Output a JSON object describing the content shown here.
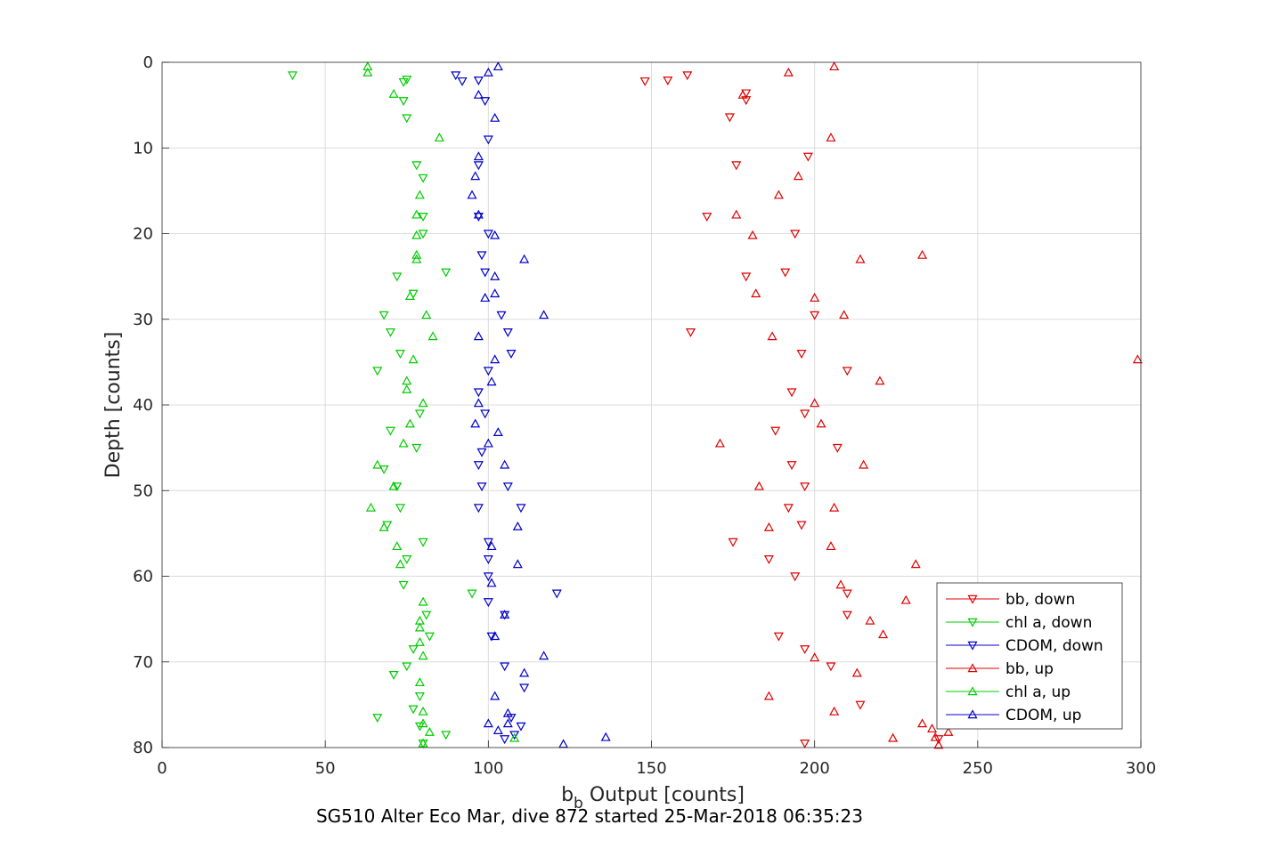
{
  "chart_data": {
    "type": "scatter",
    "title": "SG510 Alter Eco Mar, dive 872 started 25-Mar-2018 06:35:23",
    "xlabel_main": "b",
    "xlabel_sub": "b",
    "xlabel_rest": " Output [counts]",
    "ylabel": "Depth [counts]",
    "xlim": [
      0,
      300
    ],
    "ylim": [
      0,
      80
    ],
    "y_reversed": true,
    "grid": true,
    "legend_position": "lower-right",
    "x_ticks": [
      "0",
      "50",
      "100",
      "150",
      "200",
      "250",
      "300"
    ],
    "y_ticks": [
      "0",
      "10",
      "20",
      "30",
      "40",
      "50",
      "60",
      "70",
      "80"
    ],
    "series": [
      {
        "name": "bb, down",
        "color": "#e00000",
        "marker": "triangle-down",
        "points": [
          [
            161,
            1.5
          ],
          [
            155,
            2.1
          ],
          [
            148,
            2.2
          ],
          [
            179,
            3.6
          ],
          [
            179,
            4.4
          ],
          [
            174,
            6.4
          ],
          [
            198,
            11
          ],
          [
            176,
            12
          ],
          [
            167,
            18
          ],
          [
            194,
            20
          ],
          [
            191,
            24.5
          ],
          [
            179,
            25
          ],
          [
            200,
            29.5
          ],
          [
            162,
            31.5
          ],
          [
            196,
            34
          ],
          [
            210,
            36
          ],
          [
            193,
            38.5
          ],
          [
            197,
            41
          ],
          [
            188,
            43
          ],
          [
            207,
            45
          ],
          [
            193,
            47
          ],
          [
            197,
            49.5
          ],
          [
            192,
            52
          ],
          [
            196,
            54
          ],
          [
            175,
            56
          ],
          [
            186,
            58
          ],
          [
            194,
            60
          ],
          [
            210,
            62
          ],
          [
            210,
            64.5
          ],
          [
            189,
            67
          ],
          [
            197,
            68.5
          ],
          [
            205,
            70.5
          ],
          [
            214,
            75
          ],
          [
            238,
            79
          ],
          [
            197,
            79.5
          ]
        ]
      },
      {
        "name": "chl a, down",
        "color": "#00cc00",
        "marker": "triangle-down",
        "points": [
          [
            40,
            1.5
          ],
          [
            75,
            2
          ],
          [
            74,
            2.3
          ],
          [
            74,
            4.5
          ],
          [
            75,
            6.5
          ],
          [
            78,
            12
          ],
          [
            80,
            13.5
          ],
          [
            80,
            18
          ],
          [
            80,
            20
          ],
          [
            87,
            24.5
          ],
          [
            72,
            25
          ],
          [
            77,
            27
          ],
          [
            68,
            29.5
          ],
          [
            70,
            31.5
          ],
          [
            73,
            34
          ],
          [
            66,
            36
          ],
          [
            79,
            41
          ],
          [
            70,
            43
          ],
          [
            78,
            45
          ],
          [
            68,
            47.5
          ],
          [
            72,
            49.5
          ],
          [
            73,
            52
          ],
          [
            69,
            54
          ],
          [
            80,
            56
          ],
          [
            75,
            58
          ],
          [
            74,
            61
          ],
          [
            95,
            62
          ],
          [
            81,
            64.5
          ],
          [
            82,
            67
          ],
          [
            77,
            68.5
          ],
          [
            75,
            70.5
          ],
          [
            71,
            71.5
          ],
          [
            79,
            74
          ],
          [
            77,
            75.5
          ],
          [
            79,
            77.5
          ],
          [
            66,
            76.5
          ],
          [
            87,
            78.5
          ],
          [
            80,
            79.5
          ]
        ]
      },
      {
        "name": "CDOM, down",
        "color": "#0000cc",
        "marker": "triangle-down",
        "points": [
          [
            90,
            1.5
          ],
          [
            92,
            2.2
          ],
          [
            97,
            2.1
          ],
          [
            99,
            4.5
          ],
          [
            100,
            9
          ],
          [
            97,
            12
          ],
          [
            97,
            18
          ],
          [
            100,
            20
          ],
          [
            98,
            22.5
          ],
          [
            99,
            24.5
          ],
          [
            104,
            29.5
          ],
          [
            106,
            31.5
          ],
          [
            107,
            34
          ],
          [
            100,
            36
          ],
          [
            97,
            38.5
          ],
          [
            99,
            41
          ],
          [
            98,
            45.5
          ],
          [
            97,
            47
          ],
          [
            98,
            49.5
          ],
          [
            106,
            49.5
          ],
          [
            110,
            52
          ],
          [
            97,
            52
          ],
          [
            100,
            56
          ],
          [
            100,
            58
          ],
          [
            100,
            60
          ],
          [
            121,
            62
          ],
          [
            100,
            63
          ],
          [
            105,
            64.5
          ],
          [
            101,
            67
          ],
          [
            105,
            70.5
          ],
          [
            111,
            73
          ],
          [
            107,
            76.5
          ],
          [
            110,
            77.5
          ],
          [
            108,
            78.5
          ],
          [
            105,
            79
          ]
        ]
      },
      {
        "name": "bb, up",
        "color": "#e00000",
        "marker": "triangle-up",
        "points": [
          [
            206,
            0.5
          ],
          [
            192,
            1.2
          ],
          [
            178,
            3.8
          ],
          [
            205,
            8.8
          ],
          [
            195,
            13.3
          ],
          [
            189,
            15.5
          ],
          [
            176,
            17.8
          ],
          [
            181,
            20.2
          ],
          [
            233,
            22.5
          ],
          [
            214,
            23
          ],
          [
            182,
            27
          ],
          [
            200,
            27.5
          ],
          [
            209,
            29.5
          ],
          [
            187,
            32
          ],
          [
            299,
            34.7
          ],
          [
            220,
            37.2
          ],
          [
            200,
            39.8
          ],
          [
            202,
            42.2
          ],
          [
            171,
            44.5
          ],
          [
            215,
            47
          ],
          [
            183,
            49.5
          ],
          [
            206,
            52
          ],
          [
            186,
            54.3
          ],
          [
            205,
            56.5
          ],
          [
            231,
            58.6
          ],
          [
            208,
            61
          ],
          [
            228,
            62.8
          ],
          [
            217,
            65.2
          ],
          [
            221,
            66.8
          ],
          [
            200,
            69.5
          ],
          [
            213,
            71.3
          ],
          [
            186,
            74
          ],
          [
            206,
            75.8
          ],
          [
            233,
            77.2
          ],
          [
            236,
            77.8
          ],
          [
            241,
            78.2
          ],
          [
            237,
            78.8
          ],
          [
            224,
            78.9
          ],
          [
            238,
            79.7
          ]
        ]
      },
      {
        "name": "chl a, up",
        "color": "#00cc00",
        "marker": "triangle-up",
        "points": [
          [
            63,
            0.5
          ],
          [
            63,
            1.2
          ],
          [
            71,
            3.7
          ],
          [
            85,
            8.8
          ],
          [
            79,
            15.5
          ],
          [
            78,
            17.8
          ],
          [
            78,
            20.2
          ],
          [
            78,
            22.5
          ],
          [
            78,
            23
          ],
          [
            76,
            27.3
          ],
          [
            81,
            29.5
          ],
          [
            83,
            32
          ],
          [
            77,
            34.7
          ],
          [
            75,
            37.2
          ],
          [
            75,
            38.2
          ],
          [
            80,
            39.8
          ],
          [
            76,
            42.2
          ],
          [
            74,
            44.5
          ],
          [
            66,
            47
          ],
          [
            71,
            49.5
          ],
          [
            64,
            52
          ],
          [
            68,
            54.3
          ],
          [
            72,
            56.5
          ],
          [
            73,
            58.6
          ],
          [
            80,
            63
          ],
          [
            79,
            65.2
          ],
          [
            79,
            66
          ],
          [
            79,
            67.7
          ],
          [
            80,
            69.3
          ],
          [
            79,
            72.4
          ],
          [
            80,
            75.8
          ],
          [
            80,
            77.2
          ],
          [
            82,
            78.2
          ],
          [
            80,
            79.5
          ],
          [
            108,
            78.9
          ]
        ]
      },
      {
        "name": "CDOM, up",
        "color": "#0000cc",
        "marker": "triangle-up",
        "points": [
          [
            103,
            0.5
          ],
          [
            100,
            1.2
          ],
          [
            97,
            3.8
          ],
          [
            102,
            6.5
          ],
          [
            97,
            11
          ],
          [
            96,
            13.3
          ],
          [
            95,
            15.5
          ],
          [
            97,
            17.8
          ],
          [
            102,
            20.2
          ],
          [
            111,
            23
          ],
          [
            102,
            25
          ],
          [
            102,
            27
          ],
          [
            99,
            27.5
          ],
          [
            117,
            29.5
          ],
          [
            97,
            32
          ],
          [
            102,
            34.7
          ],
          [
            101,
            37.3
          ],
          [
            97,
            39.8
          ],
          [
            96,
            42.2
          ],
          [
            103,
            43.2
          ],
          [
            100,
            44.5
          ],
          [
            105,
            47
          ],
          [
            109,
            54.2
          ],
          [
            101,
            56.5
          ],
          [
            109,
            58.6
          ],
          [
            101,
            60.8
          ],
          [
            105,
            64.5
          ],
          [
            102,
            67
          ],
          [
            117,
            69.3
          ],
          [
            111,
            71.3
          ],
          [
            102,
            74
          ],
          [
            106,
            76
          ],
          [
            106,
            77.2
          ],
          [
            100,
            77.2
          ],
          [
            103,
            78
          ],
          [
            136,
            78.8
          ],
          [
            123,
            79.6
          ]
        ]
      }
    ]
  }
}
